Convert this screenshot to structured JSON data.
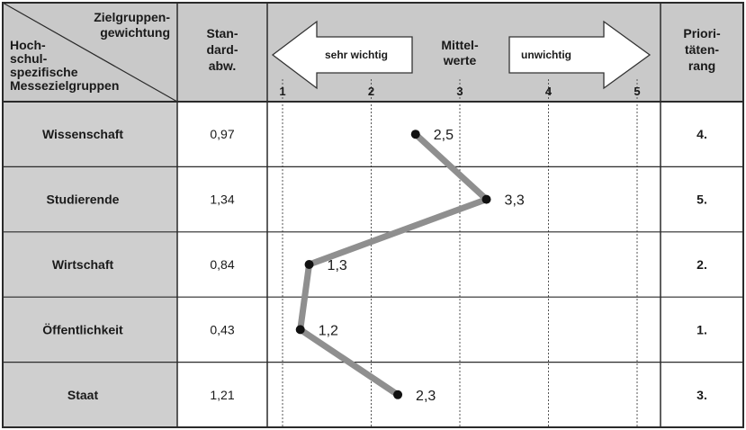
{
  "header": {
    "corner_top": [
      "Zielgruppen-",
      "gewichtung"
    ],
    "corner_bottom": [
      "Hoch-",
      "schul-",
      "spezifische",
      "Messezielgruppen"
    ],
    "std_dev": [
      "Stan-",
      "dard-",
      "abw."
    ],
    "arrow_left_label": "sehr wichtig",
    "mean_label": [
      "Mittel-",
      "werte"
    ],
    "arrow_right_label": "unwichtig",
    "priority": [
      "Priori-",
      "täten-",
      "rang"
    ]
  },
  "colors": {
    "header_bg": "#c9c9c9",
    "rowlabel_bg": "#cfcfcf",
    "grid": "#2a2a2a",
    "line": "#8f8f8f",
    "point": "#111111"
  },
  "chart_data": {
    "type": "line",
    "orientation": "horizontal",
    "x_ticks": [
      1,
      2,
      3,
      4,
      5
    ],
    "xlim": [
      1,
      5
    ],
    "categories": [
      "Wissenschaft",
      "Studierende",
      "Wirtschaft",
      "Öffentlichkeit",
      "Staat"
    ],
    "series": [
      {
        "values": [
          2.5,
          3.3,
          1.3,
          1.2,
          2.3
        ]
      }
    ],
    "value_labels": [
      "2,5",
      "3,3",
      "1,3",
      "1,2",
      "2,3"
    ],
    "std_dev_labels": [
      "0,97",
      "1,34",
      "0,84",
      "0,43",
      "1,21"
    ],
    "priority_labels": [
      "4.",
      "5.",
      "2.",
      "1.",
      "3."
    ]
  }
}
